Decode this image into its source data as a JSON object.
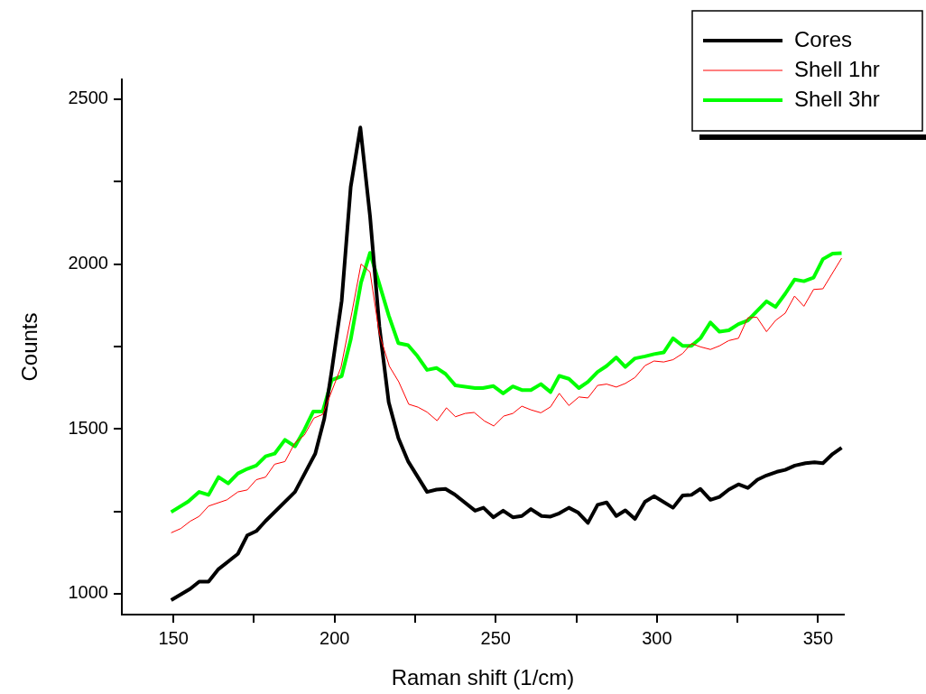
{
  "chart_data": {
    "type": "line",
    "xlabel": "Raman shift (1/cm)",
    "ylabel": "Counts",
    "xlim": [
      134,
      358
    ],
    "ylim": [
      937,
      2560
    ],
    "xticks": [
      150,
      {
        "value": 175,
        "label": null
      },
      200,
      {
        "value": 225,
        "label": null
      },
      250,
      {
        "value": 275,
        "label": null
      },
      300,
      {
        "value": 325,
        "label": null
      },
      350
    ],
    "yticks": [
      1000,
      {
        "value": 1250,
        "label": null
      },
      1500,
      {
        "value": 1750,
        "label": null
      },
      2000,
      {
        "value": 2250,
        "label": null
      },
      2500
    ],
    "grid": false,
    "legend": "top right",
    "marker": "none",
    "series": [
      {
        "name": "Cores",
        "color": "#000000",
        "x": [
          149.3,
          155.2,
          158,
          160.9,
          164,
          170,
          172.9,
          175.7,
          178.6,
          187.7,
          194,
          196.8,
          199.1,
          202.2,
          205,
          208,
          211,
          213.9,
          216.8,
          219.8,
          222.8,
          228.7,
          231.6,
          234.4,
          237.3,
          243.6,
          246.2,
          249.3,
          252.3,
          255.3,
          258.1,
          260.9,
          264.2,
          267,
          269.7,
          272.7,
          275.6,
          278.6,
          281.6,
          284.4,
          287.4,
          290.2,
          293.2,
          296.3,
          299.1,
          305,
          308,
          310.7,
          313.5,
          316.6,
          319.4,
          322.3,
          325.3,
          328.2,
          331.2,
          334,
          337.2,
          339.8,
          342.8,
          346.1,
          348.9,
          351.5,
          354.5,
          357.3
        ],
        "values": [
          981,
          1015,
          1037,
          1037,
          1075,
          1121,
          1177,
          1190,
          1221,
          1309,
          1425,
          1531,
          1676,
          1888,
          2234,
          2414,
          2145,
          1810,
          1581,
          1472,
          1402,
          1309,
          1316,
          1318,
          1301,
          1252,
          1261,
          1232,
          1252,
          1232,
          1236,
          1257,
          1236,
          1234,
          1244,
          1261,
          1246,
          1215,
          1270,
          1277,
          1236,
          1253,
          1227,
          1279,
          1296,
          1261,
          1298,
          1300,
          1318,
          1285,
          1294,
          1316,
          1332,
          1321,
          1346,
          1359,
          1370,
          1376,
          1389,
          1396,
          1399,
          1396,
          1424,
          1443
        ]
      },
      {
        "name": "Shell 1hr",
        "color": "#ff0000",
        "x": [
          149.3,
          152.3,
          155.2,
          158,
          160.9,
          166.6,
          170,
          172.9,
          175.7,
          178.6,
          181.4,
          184.6,
          187.7,
          190.6,
          193.6,
          196.3,
          202,
          205.4,
          208.2,
          211,
          213.9,
          217,
          219.9,
          223,
          225.9,
          228.7,
          231.8,
          234.7,
          237.5,
          240.5,
          243.3,
          246.5,
          249.4,
          252.5,
          255.3,
          258.1,
          260.9,
          264,
          267,
          269.7,
          272.7,
          275.8,
          278.6,
          281.6,
          284.4,
          287.4,
          290.2,
          293.2,
          296.3,
          299.1,
          302.1,
          305,
          308,
          310.7,
          313.5,
          316.6,
          319.4,
          322.3,
          325.3,
          328.2,
          331,
          334,
          336.8,
          339.8,
          342.7,
          345.6,
          348.6,
          351.5,
          357.3
        ],
        "values": [
          1185,
          1198,
          1220,
          1235,
          1266,
          1285,
          1309,
          1315,
          1346,
          1354,
          1393,
          1401,
          1458,
          1481,
          1533,
          1544,
          1687,
          1855,
          2000,
          1976,
          1788,
          1690,
          1643,
          1575,
          1566,
          1551,
          1525,
          1564,
          1537,
          1547,
          1550,
          1524,
          1509,
          1539,
          1547,
          1569,
          1558,
          1549,
          1567,
          1608,
          1571,
          1597,
          1594,
          1632,
          1636,
          1627,
          1638,
          1656,
          1692,
          1706,
          1703,
          1710,
          1729,
          1759,
          1749,
          1741,
          1752,
          1768,
          1775,
          1837,
          1839,
          1795,
          1829,
          1851,
          1903,
          1872,
          1923,
          1925,
          2018
        ]
      },
      {
        "name": "Shell 3hr",
        "color": "#00ff00",
        "x": [
          149.3,
          154.6,
          158,
          160.9,
          164,
          167,
          170,
          172.9,
          175.7,
          178.6,
          181.4,
          184.6,
          187.7,
          190.6,
          193.4,
          196.3,
          199.1,
          202.2,
          205,
          208.2,
          211,
          213.9,
          216.8,
          219.8,
          222.8,
          225.7,
          228.7,
          231.6,
          234.4,
          237.5,
          243.6,
          246,
          249.3,
          252.3,
          255.3,
          258.1,
          260.9,
          264,
          267,
          269.7,
          272.7,
          275.8,
          278.6,
          281.6,
          284.4,
          287.4,
          290.2,
          293.2,
          296.3,
          299.1,
          302.1,
          305,
          308,
          310.7,
          313.5,
          316.6,
          319.4,
          322.3,
          325.3,
          328.2,
          331,
          334,
          336.8,
          339.8,
          342.7,
          345.6,
          348.6,
          351.5,
          354.5,
          357.3
        ],
        "values": [
          1248,
          1280,
          1309,
          1300,
          1354,
          1335,
          1365,
          1379,
          1389,
          1417,
          1425,
          1467,
          1447,
          1497,
          1553,
          1553,
          1648,
          1660,
          1771,
          1944,
          2034,
          1939,
          1844,
          1760,
          1754,
          1721,
          1679,
          1685,
          1667,
          1632,
          1624,
          1624,
          1630,
          1608,
          1629,
          1618,
          1618,
          1636,
          1612,
          1661,
          1652,
          1624,
          1643,
          1673,
          1691,
          1717,
          1688,
          1714,
          1720,
          1727,
          1732,
          1775,
          1752,
          1752,
          1775,
          1823,
          1795,
          1799,
          1818,
          1829,
          1857,
          1887,
          1870,
          1910,
          1953,
          1948,
          1959,
          2015,
          2032,
          2033
        ]
      }
    ]
  }
}
